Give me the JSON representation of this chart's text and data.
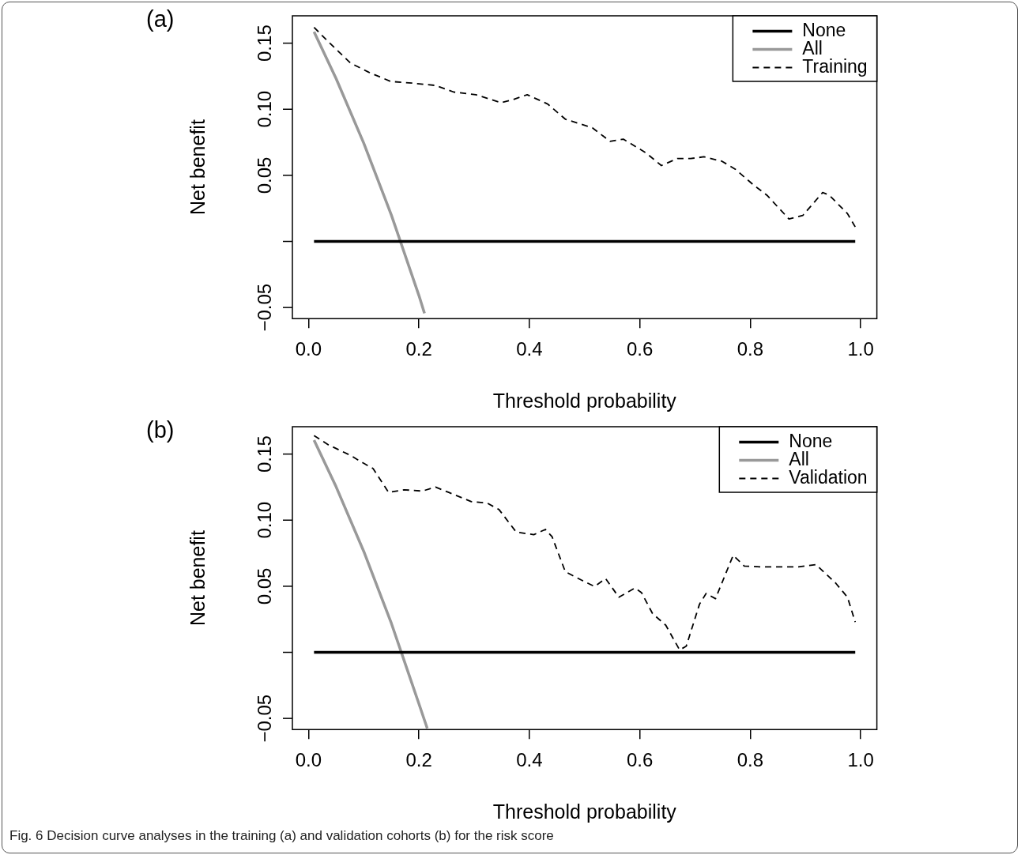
{
  "chart_data": [
    {
      "type": "line",
      "title": "(a)",
      "xlabel": "Threshold probability",
      "ylabel": "Net benefit",
      "legend": "top right",
      "grid": false,
      "marker": "none",
      "xlim": [
        -0.0292,
        1.0292
      ],
      "ylim": [
        -0.0584,
        0.1707
      ],
      "xticks": [
        {
          "value": 0,
          "label": "0.0"
        },
        {
          "value": 0.2,
          "label": "0.2"
        },
        {
          "value": 0.4,
          "label": "0.4"
        },
        {
          "value": 0.6,
          "label": "0.6"
        },
        {
          "value": 0.8,
          "label": "0.8"
        },
        {
          "value": 1,
          "label": "1.0"
        }
      ],
      "yticks": [
        {
          "value": -0.05,
          "label": "−0.05"
        },
        {
          "value": 0,
          "label": null
        },
        {
          "value": 0.05,
          "label": "0.05"
        },
        {
          "value": 0.1,
          "label": "0.10"
        },
        {
          "value": 0.15,
          "label": "0.15"
        }
      ],
      "series": [
        {
          "name": "None",
          "color": "#000000",
          "line_style": "solid",
          "x": [
            0.01,
            0.99
          ],
          "values": [
            0,
            0
          ]
        },
        {
          "name": "All",
          "color": "#999999",
          "line_style": "solid",
          "x": [
            0.01,
            0.05,
            0.1,
            0.15,
            0.2,
            0.21
          ],
          "values": [
            0.1586,
            0.1232,
            0.0744,
            0.02,
            -0.041,
            -0.0544
          ]
        },
        {
          "name": "Training",
          "color": "#000000",
          "line_style": "dashed",
          "x": [
            0.01,
            0.036,
            0.076,
            0.109,
            0.149,
            0.182,
            0.23,
            0.263,
            0.303,
            0.348,
            0.368,
            0.396,
            0.433,
            0.465,
            0.514,
            0.546,
            0.57,
            0.611,
            0.639,
            0.668,
            0.692,
            0.716,
            0.749,
            0.773,
            0.805,
            0.83,
            0.87,
            0.895,
            0.931,
            0.943,
            0.976,
            0.99
          ],
          "values": [
            0.162,
            0.151,
            0.135,
            0.128,
            0.121,
            0.12,
            0.118,
            0.113,
            0.111,
            0.105,
            0.107,
            0.111,
            0.104,
            0.0925,
            0.086,
            0.0757,
            0.0774,
            0.067,
            0.0574,
            0.0627,
            0.0627,
            0.064,
            0.0606,
            0.0546,
            0.043,
            0.035,
            0.017,
            0.0196,
            0.037,
            0.035,
            0.021,
            0.011
          ]
        }
      ]
    },
    {
      "type": "line",
      "title": "(b)",
      "xlabel": "Threshold probability",
      "ylabel": "Net benefit",
      "legend": "top right",
      "grid": false,
      "marker": "none",
      "xlim": [
        -0.0292,
        1.0292
      ],
      "ylim": [
        -0.0584,
        0.1707
      ],
      "xticks": [
        {
          "value": 0,
          "label": "0.0"
        },
        {
          "value": 0.2,
          "label": "0.2"
        },
        {
          "value": 0.4,
          "label": "0.4"
        },
        {
          "value": 0.6,
          "label": "0.6"
        },
        {
          "value": 0.8,
          "label": "0.8"
        },
        {
          "value": 1,
          "label": "1.0"
        }
      ],
      "yticks": [
        {
          "value": -0.05,
          "label": "−0.05"
        },
        {
          "value": 0,
          "label": null
        },
        {
          "value": 0.05,
          "label": "0.05"
        },
        {
          "value": 0.1,
          "label": "0.10"
        },
        {
          "value": 0.15,
          "label": "0.15"
        }
      ],
      "annotations": [
        "Fig. 6 Decision curve analyses in the training (a) and validation cohorts (b) for the risk score"
      ],
      "series": [
        {
          "name": "None",
          "color": "#000000",
          "line_style": "solid",
          "x": [
            0.01,
            0.99
          ],
          "values": [
            0,
            0
          ]
        },
        {
          "name": "All",
          "color": "#999999",
          "line_style": "solid",
          "x": [
            0.01,
            0.05,
            0.1,
            0.15,
            0.2,
            0.215
          ],
          "values": [
            0.1606,
            0.1252,
            0.0764,
            0.022,
            -0.039,
            -0.0575
          ]
        },
        {
          "name": "Validation",
          "color": "#000000",
          "line_style": "dashed",
          "x": [
            0.01,
            0.036,
            0.076,
            0.1,
            0.117,
            0.145,
            0.173,
            0.206,
            0.23,
            0.254,
            0.295,
            0.323,
            0.345,
            0.376,
            0.408,
            0.429,
            0.441,
            0.465,
            0.494,
            0.518,
            0.538,
            0.562,
            0.591,
            0.603,
            0.623,
            0.647,
            0.672,
            0.684,
            0.708,
            0.72,
            0.737,
            0.769,
            0.789,
            0.822,
            0.887,
            0.919,
            0.955,
            0.976,
            0.99
          ],
          "values": [
            0.164,
            0.157,
            0.149,
            0.143,
            0.139,
            0.121,
            0.123,
            0.122,
            0.125,
            0.121,
            0.114,
            0.113,
            0.108,
            0.091,
            0.089,
            0.093,
            0.0875,
            0.061,
            0.0547,
            0.0498,
            0.0558,
            0.0417,
            0.0487,
            0.0452,
            0.0293,
            0.0205,
            0.0018,
            0.0046,
            0.0364,
            0.0445,
            0.0406,
            0.0734,
            0.0653,
            0.0646,
            0.0646,
            0.0664,
            0.0522,
            0.0417,
            0.0229
          ]
        }
      ]
    }
  ]
}
